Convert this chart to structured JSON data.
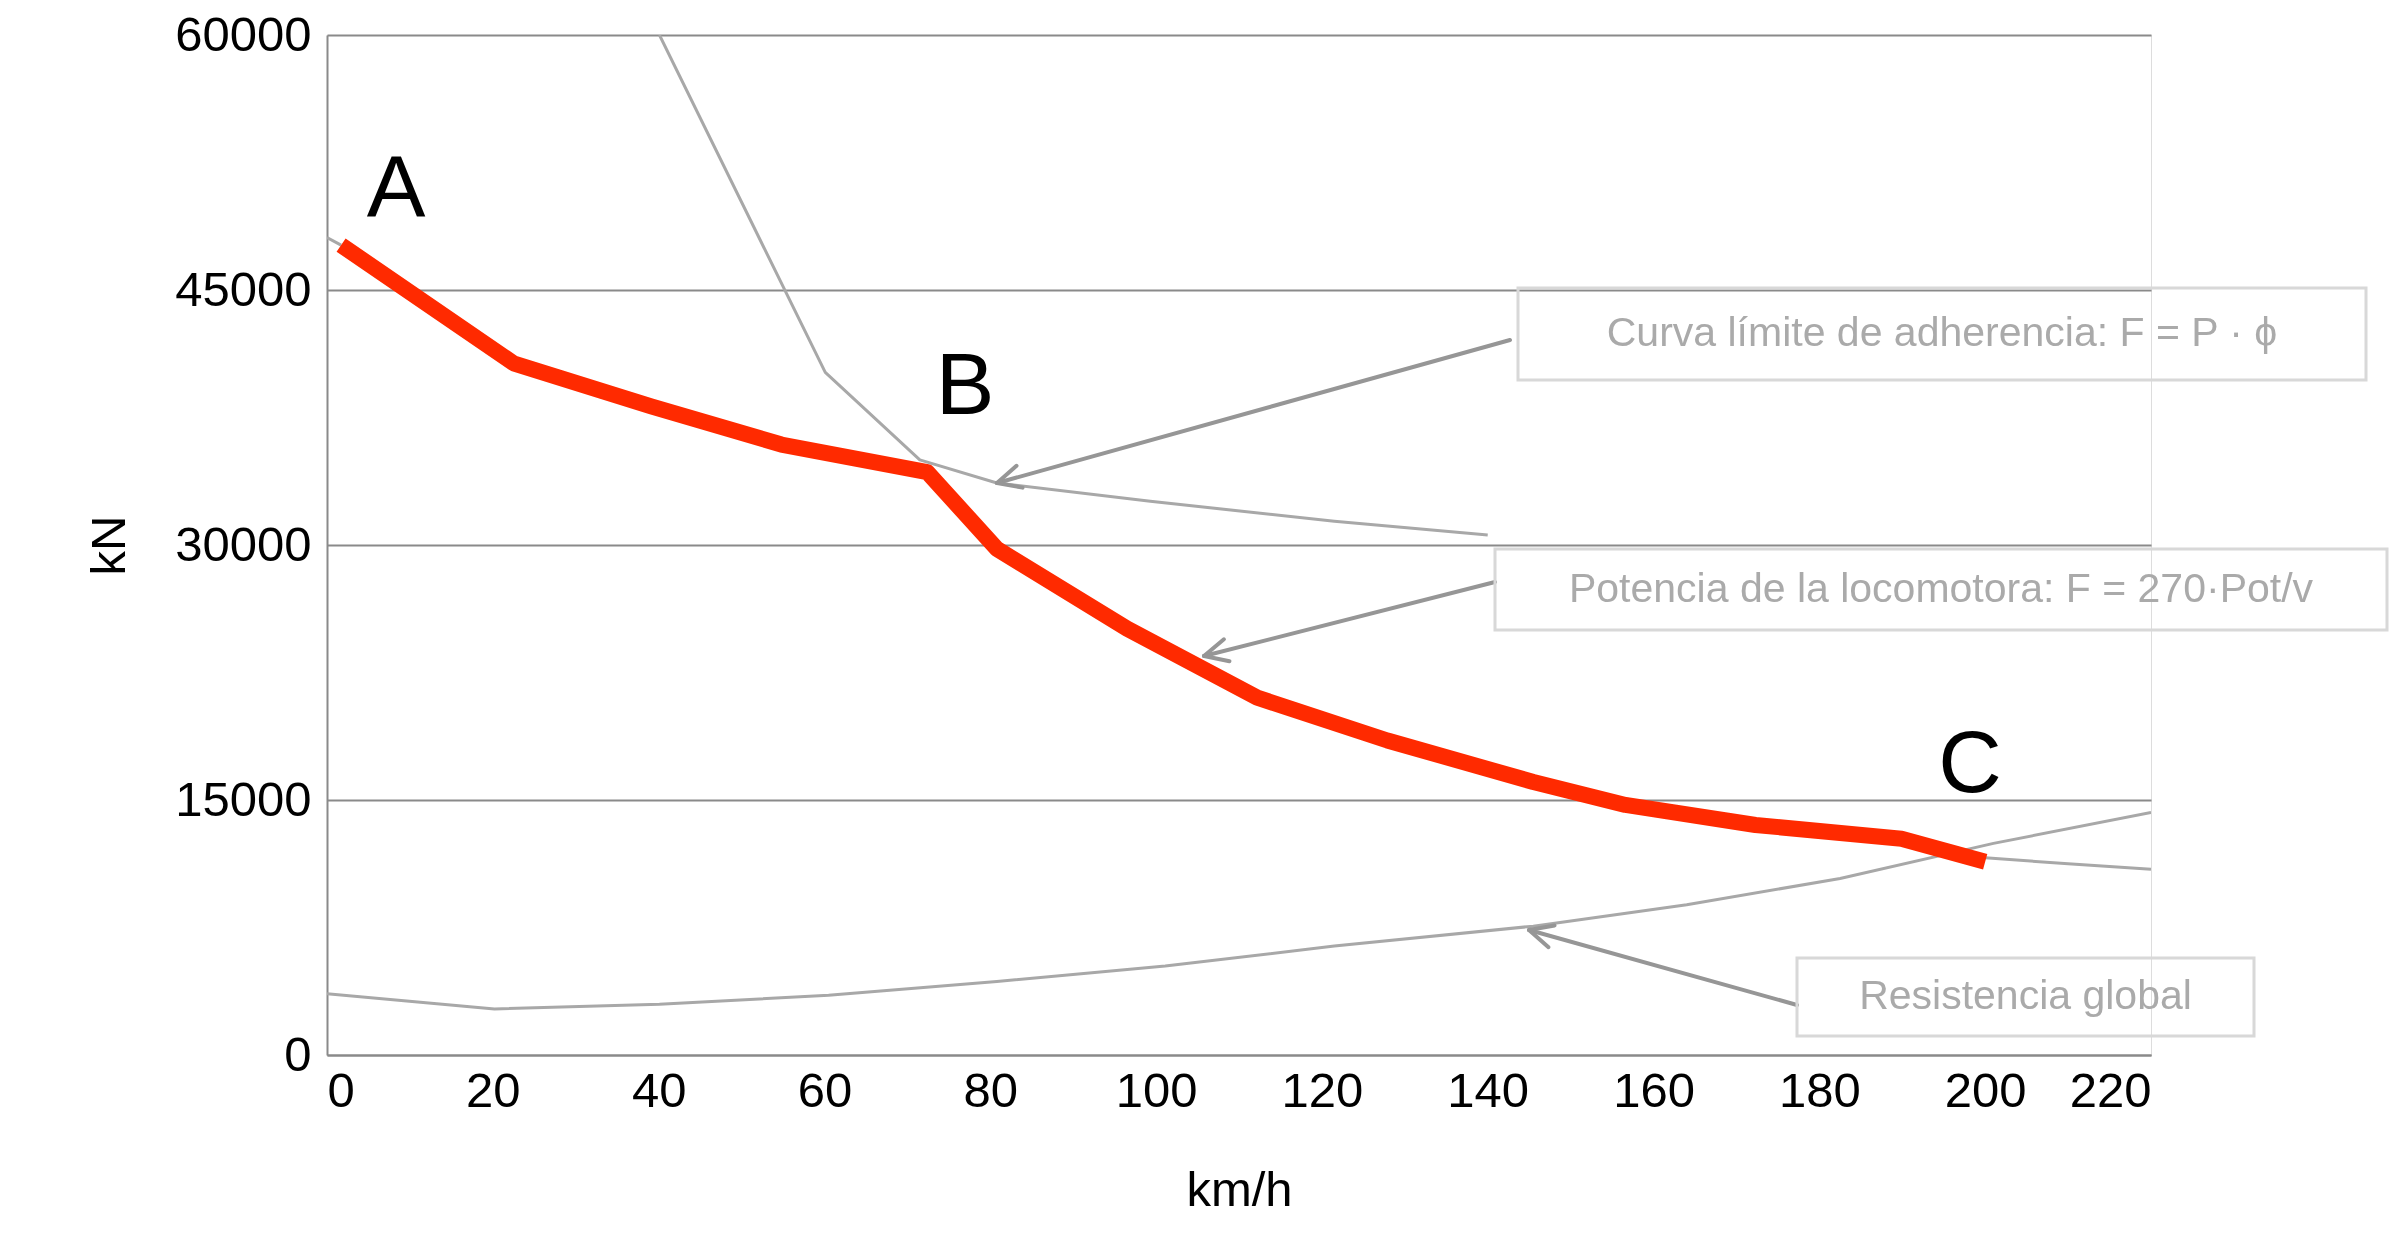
{
  "chart_data": {
    "type": "line",
    "xlabel": "km/h",
    "ylabel": "kN",
    "xlim": [
      0,
      220
    ],
    "xticks": [
      0,
      20,
      40,
      60,
      80,
      100,
      120,
      140,
      160,
      180,
      200,
      220
    ],
    "ylim": [
      0,
      60000
    ],
    "yticks": [
      0,
      15000,
      30000,
      45000,
      60000
    ],
    "grid": "y",
    "line_style": "solid",
    "marker": "none",
    "series": [
      {
        "color": "#a8a8a8",
        "x": [
          40.1,
          60.1,
          71.5,
          80.8,
          99.3,
          121.5,
          140
        ],
        "values": [
          60000,
          40150,
          35010,
          33650,
          32570,
          31400,
          30590
        ]
      },
      {
        "color": "#a8a8a8",
        "x": [
          0,
          20.2,
          40.1,
          60.5,
          80.8,
          101.1,
          121.5,
          145.5,
          164,
          182.5,
          201,
          220
        ],
        "values": [
          3610,
          2710,
          2980,
          3520,
          4330,
          5230,
          6410,
          7580,
          8840,
          10380,
          12450,
          14260
        ]
      },
      {
        "color": "#a8a8a8",
        "x": [
          0,
          1.7
        ],
        "values": [
          48090,
          47640
        ]
      },
      {
        "color": "#a8a8a8",
        "x": [
          200,
          210,
          220
        ],
        "values": [
          11600,
          11250,
          10920
        ]
      },
      {
        "color": "#ff2a00",
        "x": [
          1.7,
          22.5,
          39.1,
          54.8,
          72.4,
          80.8,
          96.5,
          112.2,
          127.9,
          145.5,
          156.6,
          172.3,
          189.9,
          200
        ],
        "values": [
          47640,
          40690,
          38160,
          35910,
          34290,
          29770,
          25080,
          21020,
          18500,
          16060,
          14710,
          13530,
          12720,
          11370
        ]
      }
    ],
    "annotations": [
      "A",
      "B",
      "C",
      "Curva límite de adherencia: F = P · ϕ",
      "Potencia de la locomotora: F = 270·Pot/v",
      "Resistencia global"
    ]
  }
}
